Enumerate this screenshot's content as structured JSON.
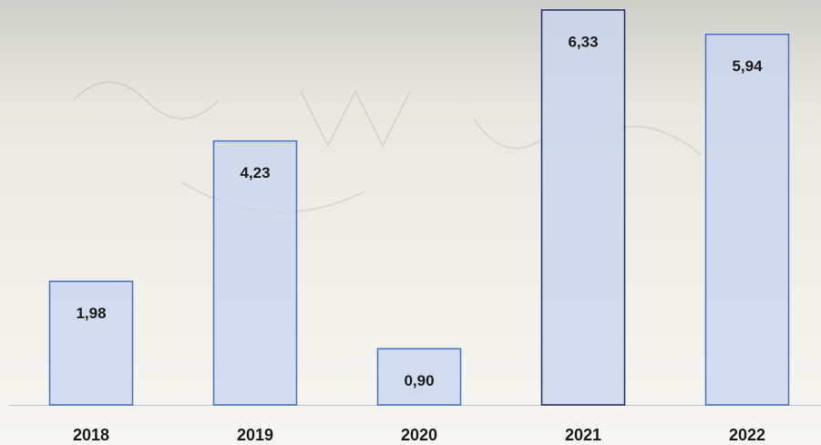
{
  "chart_data": {
    "type": "bar",
    "categories": [
      "2018",
      "2019",
      "2020",
      "2021",
      "2022"
    ],
    "values": [
      1.98,
      4.23,
      0.9,
      6.33,
      5.94
    ],
    "value_labels": [
      "1,98",
      "4,23",
      "0,90",
      "6,33",
      "5,94"
    ],
    "color": "#cad6ef",
    "edge_colors": [
      "#4472c4",
      "#4472c4",
      "#4472c4",
      "#1f2a5e",
      "#4472c4"
    ]
  }
}
